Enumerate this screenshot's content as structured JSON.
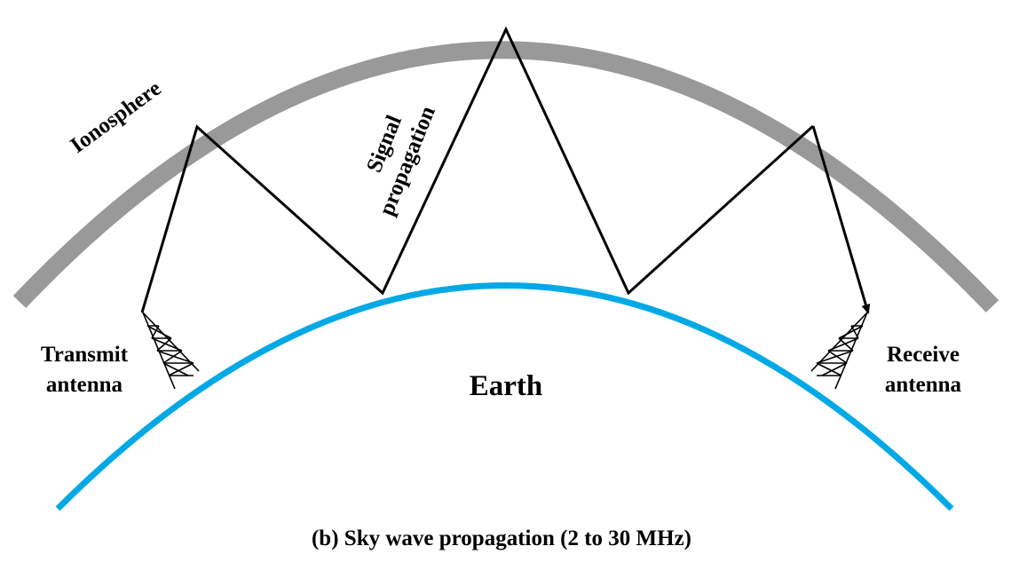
{
  "diagram": {
    "labels": {
      "ionosphere": "Ionosphere",
      "signal_line1": "Signal",
      "signal_line2": "propagation",
      "transmit_line1": "Transmit",
      "transmit_line2": "antenna",
      "receive_line1": "Receive",
      "receive_line2": "antenna",
      "earth": "Earth"
    },
    "caption": "(b) Sky wave propagation (2 to 30 MHz)",
    "colors": {
      "ionosphere": "#999999",
      "earth": "#00a9e6",
      "signal": "#000000"
    }
  }
}
